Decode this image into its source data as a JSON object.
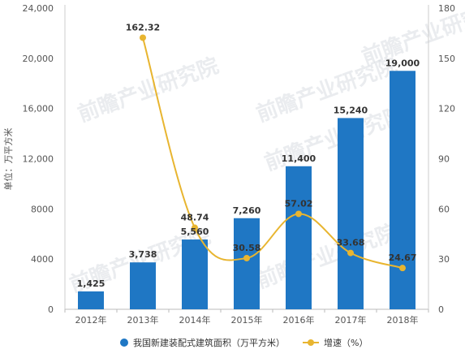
{
  "chart_data": {
    "type": "bar+line",
    "categories": [
      "2012年",
      "2013年",
      "2014年",
      "2015年",
      "2016年",
      "2017年",
      "2018年"
    ],
    "series": [
      {
        "name": "我国新建装配式建筑面积（万平方米）",
        "type": "bar",
        "axis": "left",
        "values": [
          1425,
          3738,
          5560,
          7260,
          11400,
          15240,
          19000
        ],
        "labels": [
          "1,425",
          "3,738",
          "5,560",
          "7,260",
          "11,400",
          "15,240",
          "19,000"
        ],
        "color": "#1f77c4"
      },
      {
        "name": "增速（%）",
        "type": "line",
        "axis": "right",
        "values": [
          null,
          162.32,
          48.74,
          30.58,
          57.02,
          33.68,
          24.67
        ],
        "labels": [
          "",
          "162.32",
          "48.74",
          "30.58",
          "57.02",
          "33.68",
          "24.67"
        ],
        "color": "#e8b530"
      }
    ],
    "ylabel": "单位：万平方米",
    "ylim": [
      0,
      24000
    ],
    "y_ticks": [
      0,
      4000,
      8000,
      12000,
      16000,
      20000,
      24000
    ],
    "y_tick_labels": [
      "0",
      "4000",
      "8000",
      "12,000",
      "16,000",
      "20,000",
      "24,000"
    ],
    "y2lim": [
      0,
      180
    ],
    "y2_ticks": [
      0,
      30,
      60,
      90,
      120,
      150,
      180
    ],
    "y2_tick_labels": [
      "0",
      "30",
      "60",
      "90",
      "120",
      "150",
      "180"
    ],
    "grid": false,
    "legend_position": "bottom",
    "watermark": "前瞻产业研究院"
  }
}
